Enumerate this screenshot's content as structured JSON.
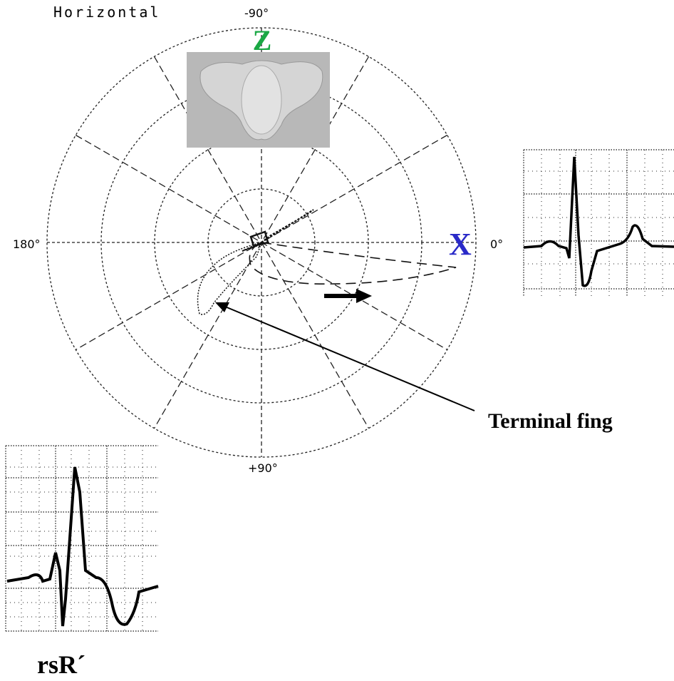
{
  "plane_title": "Horizontal",
  "axis_labels": {
    "top": "-90°",
    "left": "180°",
    "right": "0°",
    "bottom": "+90°"
  },
  "lead_labels": {
    "z": "Z",
    "x": "X"
  },
  "annotation": "Terminal fing",
  "pattern_label": "rsR´"
}
